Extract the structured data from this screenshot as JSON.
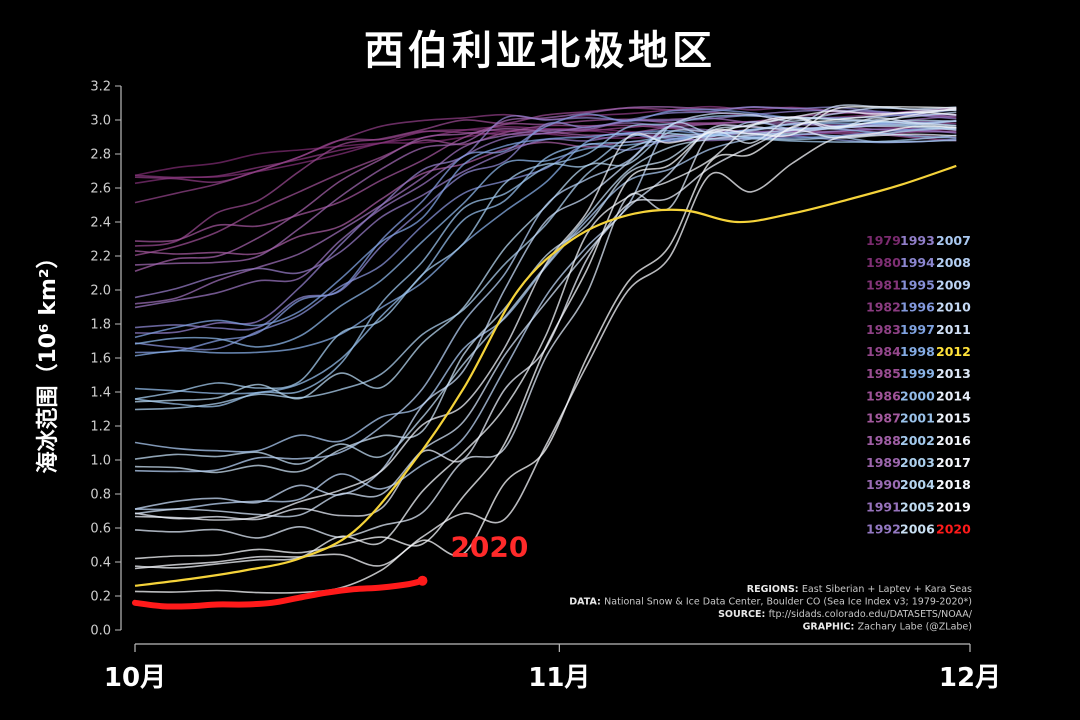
{
  "chart_data": {
    "type": "line",
    "title": "西伯利亚北极地区",
    "ylabel": "海冰范围（10⁶ km²）",
    "xlabel": "",
    "x_ticks": [
      "10月",
      "11月",
      "12月"
    ],
    "ylim": [
      0.0,
      3.2
    ],
    "y_ticks": [
      "0.0",
      "0.2",
      "0.4",
      "0.6",
      "0.8",
      "1.0",
      "1.2",
      "1.4",
      "1.6",
      "1.8",
      "2.0",
      "2.2",
      "2.4",
      "2.6",
      "2.8",
      "3.0",
      "3.2"
    ],
    "grid": false,
    "legend_position": "right",
    "legend_columns": [
      [
        "1979",
        "1980",
        "1981",
        "1982",
        "1983",
        "1984",
        "1985",
        "1986",
        "1987",
        "1988",
        "1989",
        "1990",
        "1991",
        "1992"
      ],
      [
        "1993",
        "1994",
        "1995",
        "1996",
        "1997",
        "1998",
        "1999",
        "2000",
        "2001",
        "2002",
        "2003",
        "2004",
        "2005",
        "2006"
      ],
      [
        "2007",
        "2008",
        "2009",
        "2010",
        "2011",
        "2012",
        "2013",
        "2014",
        "2015",
        "2016",
        "2017",
        "2018",
        "2019",
        "2020"
      ]
    ],
    "legend_colors": [
      [
        "#7a2a6e",
        "#7f2f74",
        "#84357a",
        "#8a3b80",
        "#8f4186",
        "#94478c",
        "#994d92",
        "#9e5398",
        "#a3599e",
        "#a05fa6",
        "#9c66ad",
        "#9a6cb4",
        "#9672bb",
        "#9378c2"
      ],
      [
        "#907ec8",
        "#8b86cf",
        "#8690d6",
        "#8299dc",
        "#7fa2e0",
        "#84abe3",
        "#8ab3e6",
        "#92bbe8",
        "#9ac2ea",
        "#a3c9ec",
        "#accfed",
        "#b6d5ef",
        "#bfdaf0",
        "#c9dff2"
      ],
      [
        "#a9c8f0",
        "#b3cef2",
        "#bcd4f4",
        "#c6daf5",
        "#d0e0f6",
        "#ffe23a",
        "#dee8f7",
        "#e8eef9",
        "#eef2fa",
        "#f2f5fb",
        "#f5f7fc",
        "#f7f9fd",
        "#fafbfe",
        "#ff1a1a"
      ]
    ],
    "highlight": {
      "2012": "#f5d33a",
      "2020": "#ff1a1a"
    },
    "callout_label": "2020",
    "series_2012": {
      "x": [
        0,
        4,
        8,
        12,
        16,
        20,
        24,
        28,
        32,
        36,
        40,
        44,
        48,
        52,
        56,
        60
      ],
      "y": [
        0.26,
        0.3,
        0.35,
        0.42,
        0.58,
        0.95,
        1.42,
        2.0,
        2.3,
        2.44,
        2.47,
        2.4,
        2.45,
        2.53,
        2.62,
        2.73
      ]
    },
    "series_2020": {
      "x": [
        0,
        2,
        4,
        6,
        8,
        10,
        12,
        14,
        16,
        18,
        20,
        21
      ],
      "y": [
        0.16,
        0.14,
        0.14,
        0.15,
        0.15,
        0.16,
        0.19,
        0.22,
        0.24,
        0.25,
        0.27,
        0.29
      ]
    },
    "other_years_shown_as_light_lines": "1979-2019 (excluding 2012) as faded multicolor traces converging near 3.0 by early December",
    "credits": [
      {
        "key": "REGIONS:",
        "text": "East Siberian + Laptev + Kara Seas"
      },
      {
        "key": "DATA:",
        "text": "National Snow & Ice Data Center, Boulder CO (Sea Ice Index v3; 1979-2020*)"
      },
      {
        "key": "SOURCE:",
        "text": "ftp://sidads.colorado.edu/DATASETS/NOAA/"
      },
      {
        "key": "GRAPHIC:",
        "text": "Zachary Labe (@ZLabe)"
      }
    ]
  }
}
